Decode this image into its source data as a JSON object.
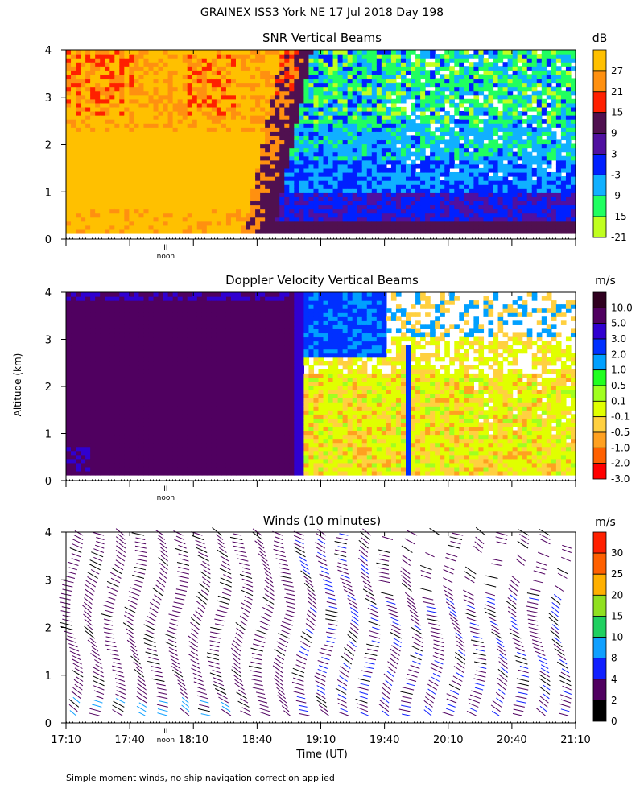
{
  "page": {
    "title": "GRAINEX ISS3 York NE  17 Jul 2018 Day 198",
    "y_label": "Altitude (km)",
    "x_label": "Time (UT)",
    "footnote": "Simple moment winds, no ship navigation correction applied",
    "noon_label": "noon",
    "noon_marker": "II"
  },
  "chart_data": [
    {
      "id": "snr",
      "type": "heatmap",
      "title": "SNR Vertical Beams",
      "units": "dB",
      "ylim": [
        0,
        4
      ],
      "y_ticks": [
        "0",
        "1",
        "2",
        "3",
        "4"
      ],
      "x_range": [
        "17:10",
        "21:10"
      ],
      "colorbar": {
        "labels": [
          "27",
          "21",
          "15",
          "9",
          "3",
          "-3",
          "-9",
          "-15",
          "-21"
        ],
        "colors": [
          "#ffc000",
          "#ff9010",
          "#ff2000",
          "#501050",
          "#5010a0",
          "#0020ff",
          "#10b0ff",
          "#20ff60",
          "#c0ff20"
        ]
      },
      "regions": [
        {
          "from": "17:10",
          "to": "18:50",
          "alt": [
            0.1,
            4.0
          ],
          "value_range": [
            15,
            30
          ],
          "color": "#ffc000"
        },
        {
          "from": "18:50",
          "to": "19:02",
          "alt": [
            0.1,
            4.0
          ],
          "value_range": [
            3,
            15
          ],
          "color": "#501050"
        },
        {
          "from": "19:02",
          "to": "21:10",
          "alt": [
            0.1,
            1.0
          ],
          "value_range": [
            -3,
            9
          ],
          "color": "#0020ff"
        },
        {
          "from": "19:02",
          "to": "21:10",
          "alt": [
            1.0,
            4.0
          ],
          "value_range": [
            -21,
            -3
          ],
          "color": "#20ff60"
        }
      ]
    },
    {
      "id": "doppler",
      "type": "heatmap",
      "title": "Doppler Velocity Vertical Beams",
      "units": "m/s",
      "ylim": [
        0,
        4
      ],
      "y_ticks": [
        "0",
        "1",
        "2",
        "3",
        "4"
      ],
      "x_range": [
        "17:10",
        "21:10"
      ],
      "colorbar": {
        "labels": [
          "10.0",
          "5.0",
          "3.0",
          "2.0",
          "1.0",
          "0.5",
          "0.1",
          "-0.1",
          "-0.5",
          "-1.0",
          "-2.0",
          "-3.0"
        ],
        "colors": [
          "#300020",
          "#500060",
          "#3000d0",
          "#0030ff",
          "#00a0ff",
          "#20ff20",
          "#a0ff20",
          "#e0ff00",
          "#ffd040",
          "#ffa020",
          "#ff6000",
          "#ff0000"
        ]
      },
      "regions": [
        {
          "from": "17:10",
          "to": "19:02",
          "alt": [
            0.1,
            4.0
          ],
          "value_range": [
            3.0,
            5.0
          ],
          "color": "#500060"
        },
        {
          "from": "19:02",
          "to": "19:30",
          "alt": [
            2.5,
            4.0
          ],
          "value_range": [
            1.0,
            3.0
          ],
          "color": "#0030ff"
        },
        {
          "from": "19:02",
          "to": "21:10",
          "alt": [
            0.1,
            2.5
          ],
          "value_range": [
            -1.0,
            0.5
          ],
          "color": "#ffd040"
        }
      ]
    },
    {
      "id": "winds",
      "type": "wind_barbs",
      "title": "Winds (10 minutes)",
      "units": "m/s",
      "ylim": [
        0,
        4
      ],
      "y_ticks": [
        "0",
        "1",
        "2",
        "3",
        "4"
      ],
      "x_ticks": [
        "17:10",
        "17:40",
        "18:10",
        "18:40",
        "19:10",
        "19:40",
        "20:10",
        "20:40",
        "21:10"
      ],
      "colorbar": {
        "labels": [
          "30",
          "25",
          "20",
          "15",
          "10",
          "8",
          "4",
          "2",
          "0"
        ],
        "colors": [
          "#ff2000",
          "#ff6000",
          "#ffb000",
          "#90e020",
          "#20d060",
          "#10a0ff",
          "#1020ff",
          "#500060",
          "#000000"
        ]
      },
      "profile_interval_minutes": 10,
      "dominant_speed_range": [
        2,
        8
      ]
    }
  ]
}
